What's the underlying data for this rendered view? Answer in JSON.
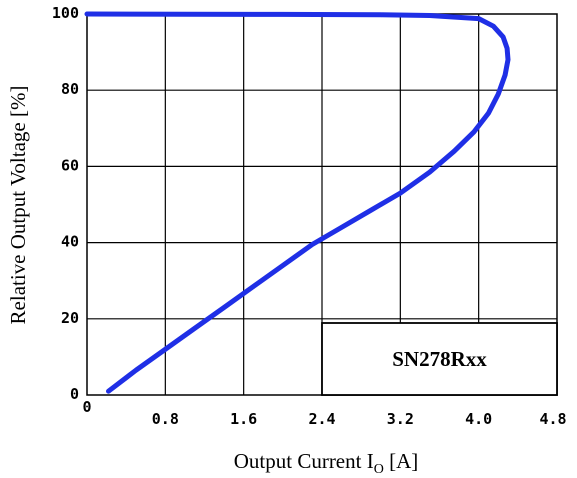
{
  "chart_data": {
    "type": "line",
    "title": "",
    "xlabel": "Output Current I",
    "xlabel_subscript": "O",
    "xlabel_unit": " [A]",
    "ylabel": "Relative Output Voltage [%]",
    "x_tick_labels": [
      "0",
      "0.8",
      "1.6",
      "2.4",
      "3.2",
      "4.0",
      "4.8"
    ],
    "y_tick_labels": [
      "0",
      "20",
      "40",
      "60",
      "80",
      "100"
    ],
    "xlim": [
      0,
      4.8
    ],
    "ylim": [
      0,
      100
    ],
    "grid": true,
    "annotation": "SN278Rxx",
    "series_color": "#1f2fe6",
    "series": [
      {
        "x": [
          0.22,
          0.5,
          0.8,
          1.1,
          1.4,
          1.7,
          2.0,
          2.3,
          2.6,
          2.9,
          3.2,
          3.5,
          3.75,
          3.95,
          4.1,
          4.2,
          4.27,
          4.3,
          4.29,
          4.25,
          4.15,
          4.0,
          3.5,
          3.0,
          2.0,
          1.0,
          0.0
        ],
        "y": [
          1,
          6.5,
          12,
          17.5,
          23,
          28.5,
          34,
          39.5,
          44,
          48.5,
          53,
          58.5,
          64,
          69,
          74,
          79,
          84,
          88,
          91,
          94,
          96.8,
          98.8,
          99.6,
          99.8,
          99.9,
          99.95,
          100
        ]
      }
    ]
  }
}
